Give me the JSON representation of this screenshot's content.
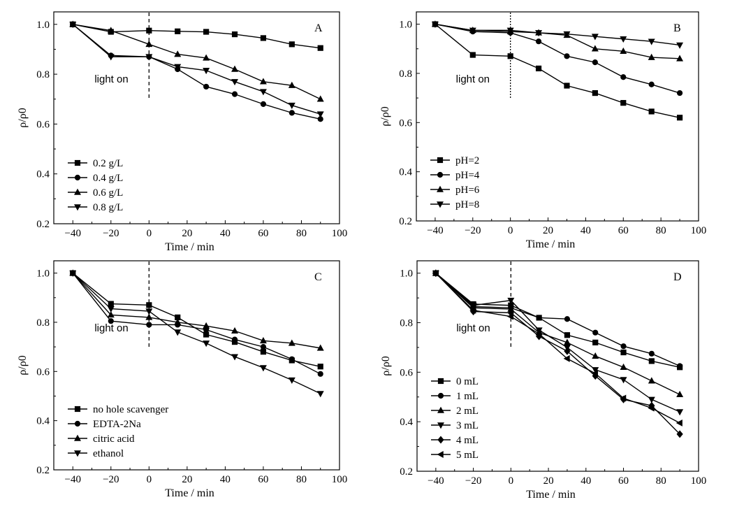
{
  "chart_data": [
    {
      "type": "line",
      "panel_label": "A",
      "xlabel": "Time / min",
      "ylabel": "ρ/ρ0",
      "xlim": [
        -50,
        100
      ],
      "ylim": [
        0.2,
        1.05
      ],
      "xticks": [
        -40,
        -20,
        0,
        20,
        40,
        60,
        80,
        100
      ],
      "xtick_labels": [
        "−40",
        "−20",
        "0",
        "20",
        "40",
        "60",
        "80",
        "100"
      ],
      "yticks": [
        0.2,
        0.4,
        0.6,
        0.8,
        1.0
      ],
      "ytick_labels": [
        "0.2",
        "0.4",
        "0.6",
        "0.8",
        "1.0"
      ],
      "annotation": {
        "text": "light on",
        "x": 0
      },
      "light_line_style": "dashed",
      "legend_position": "lower-left",
      "x": [
        -40,
        -20,
        0,
        15,
        30,
        45,
        60,
        75,
        90
      ],
      "series": [
        {
          "name": "0.2 g/L",
          "marker": "square",
          "values": [
            1.0,
            0.97,
            0.975,
            0.972,
            0.97,
            0.96,
            0.945,
            0.92,
            0.905
          ]
        },
        {
          "name": "0.4 g/L",
          "marker": "circle",
          "values": [
            1.0,
            0.875,
            0.87,
            0.82,
            0.75,
            0.72,
            0.68,
            0.645,
            0.62
          ]
        },
        {
          "name": "0.6 g/L",
          "marker": "triangle-up",
          "values": [
            1.0,
            0.975,
            0.92,
            0.88,
            0.865,
            0.82,
            0.77,
            0.755,
            0.7
          ]
        },
        {
          "name": "0.8 g/L",
          "marker": "triangle-down",
          "values": [
            1.0,
            0.87,
            0.87,
            0.83,
            0.815,
            0.77,
            0.73,
            0.675,
            0.64
          ]
        }
      ]
    },
    {
      "type": "line",
      "panel_label": "B",
      "xlabel": "Time / min",
      "ylabel": "ρ/ρ0",
      "xlim": [
        -50,
        100
      ],
      "ylim": [
        0.2,
        1.05
      ],
      "xticks": [
        -40,
        -20,
        0,
        20,
        40,
        60,
        80,
        100
      ],
      "xtick_labels": [
        "−40",
        "−20",
        "0",
        "20",
        "40",
        "60",
        "80",
        "100"
      ],
      "yticks": [
        0.2,
        0.4,
        0.6,
        0.8,
        1.0
      ],
      "ytick_labels": [
        "0.2",
        "0.4",
        "0.6",
        "0.8",
        "1.0"
      ],
      "annotation": {
        "text": "light on",
        "x": 0
      },
      "light_line_style": "dotted",
      "legend_position": "lower-left",
      "x": [
        -40,
        -20,
        0,
        15,
        30,
        45,
        60,
        75,
        90
      ],
      "series": [
        {
          "name": "pH=2",
          "marker": "square",
          "values": [
            1.0,
            0.875,
            0.87,
            0.82,
            0.75,
            0.72,
            0.68,
            0.645,
            0.62
          ]
        },
        {
          "name": "pH=4",
          "marker": "circle",
          "values": [
            1.0,
            0.97,
            0.965,
            0.93,
            0.87,
            0.845,
            0.785,
            0.755,
            0.72
          ]
        },
        {
          "name": "pH=6",
          "marker": "triangle-up",
          "values": [
            1.0,
            0.975,
            0.97,
            0.965,
            0.955,
            0.9,
            0.89,
            0.865,
            0.86
          ]
        },
        {
          "name": "pH=8",
          "marker": "triangle-down",
          "values": [
            1.0,
            0.975,
            0.975,
            0.965,
            0.96,
            0.95,
            0.94,
            0.93,
            0.915
          ]
        }
      ]
    },
    {
      "type": "line",
      "panel_label": "C",
      "xlabel": "Time / min",
      "ylabel": "ρ/ρ0",
      "xlim": [
        -50,
        100
      ],
      "ylim": [
        0.2,
        1.05
      ],
      "xticks": [
        -40,
        -20,
        0,
        20,
        40,
        60,
        80,
        100
      ],
      "xtick_labels": [
        "−40",
        "−20",
        "0",
        "20",
        "40",
        "60",
        "80",
        "100"
      ],
      "yticks": [
        0.2,
        0.4,
        0.6,
        0.8,
        1.0
      ],
      "ytick_labels": [
        "0.2",
        "0.4",
        "0.6",
        "0.8",
        "1.0"
      ],
      "annotation": {
        "text": "light on",
        "x": 0
      },
      "light_line_style": "dashed",
      "legend_position": "lower-left",
      "x": [
        -40,
        -20,
        0,
        15,
        30,
        45,
        60,
        75,
        90
      ],
      "series": [
        {
          "name": "no hole scavenger",
          "marker": "square",
          "values": [
            1.0,
            0.875,
            0.87,
            0.82,
            0.75,
            0.72,
            0.68,
            0.645,
            0.62
          ]
        },
        {
          "name": "EDTA-2Na",
          "marker": "circle",
          "values": [
            1.0,
            0.805,
            0.79,
            0.79,
            0.77,
            0.73,
            0.7,
            0.65,
            0.59
          ]
        },
        {
          "name": "citric acid",
          "marker": "triangle-up",
          "values": [
            1.0,
            0.83,
            0.82,
            0.8,
            0.785,
            0.765,
            0.725,
            0.715,
            0.695
          ]
        },
        {
          "name": "ethanol",
          "marker": "triangle-down",
          "values": [
            1.0,
            0.855,
            0.845,
            0.76,
            0.715,
            0.66,
            0.615,
            0.565,
            0.51
          ]
        }
      ]
    },
    {
      "type": "line",
      "panel_label": "D",
      "xlabel": "Time / min",
      "ylabel": "ρ/ρ0",
      "xlim": [
        -50,
        100
      ],
      "ylim": [
        0.2,
        1.05
      ],
      "xticks": [
        -40,
        -20,
        0,
        20,
        40,
        60,
        80,
        100
      ],
      "xtick_labels": [
        "−40",
        "−20",
        "0",
        "20",
        "40",
        "60",
        "80",
        "100"
      ],
      "yticks": [
        0.2,
        0.4,
        0.6,
        0.8,
        1.0
      ],
      "ytick_labels": [
        "0.2",
        "0.4",
        "0.6",
        "0.8",
        "1.0"
      ],
      "annotation": {
        "text": "light on",
        "x": 0
      },
      "light_line_style": "dashed",
      "legend_position": "lower-left",
      "x": [
        -40,
        -20,
        0,
        15,
        30,
        45,
        60,
        75,
        90
      ],
      "series": [
        {
          "name": "0 mL",
          "marker": "square",
          "values": [
            1.0,
            0.875,
            0.87,
            0.82,
            0.75,
            0.72,
            0.68,
            0.645,
            0.62
          ]
        },
        {
          "name": "1 mL",
          "marker": "circle",
          "values": [
            1.0,
            0.865,
            0.86,
            0.82,
            0.815,
            0.76,
            0.705,
            0.675,
            0.625
          ]
        },
        {
          "name": "2 mL",
          "marker": "triangle-up",
          "values": [
            1.0,
            0.86,
            0.855,
            0.76,
            0.72,
            0.665,
            0.62,
            0.565,
            0.51
          ]
        },
        {
          "name": "3 mL",
          "marker": "triangle-down",
          "values": [
            1.0,
            0.87,
            0.89,
            0.77,
            0.7,
            0.61,
            0.57,
            0.49,
            0.44
          ]
        },
        {
          "name": "4 mL",
          "marker": "diamond",
          "values": [
            1.0,
            0.845,
            0.84,
            0.745,
            0.685,
            0.585,
            0.49,
            0.465,
            0.35
          ]
        },
        {
          "name": "5 mL",
          "marker": "triangle-left",
          "values": [
            1.0,
            0.85,
            0.825,
            0.755,
            0.655,
            0.595,
            0.495,
            0.455,
            0.395
          ]
        }
      ]
    }
  ]
}
